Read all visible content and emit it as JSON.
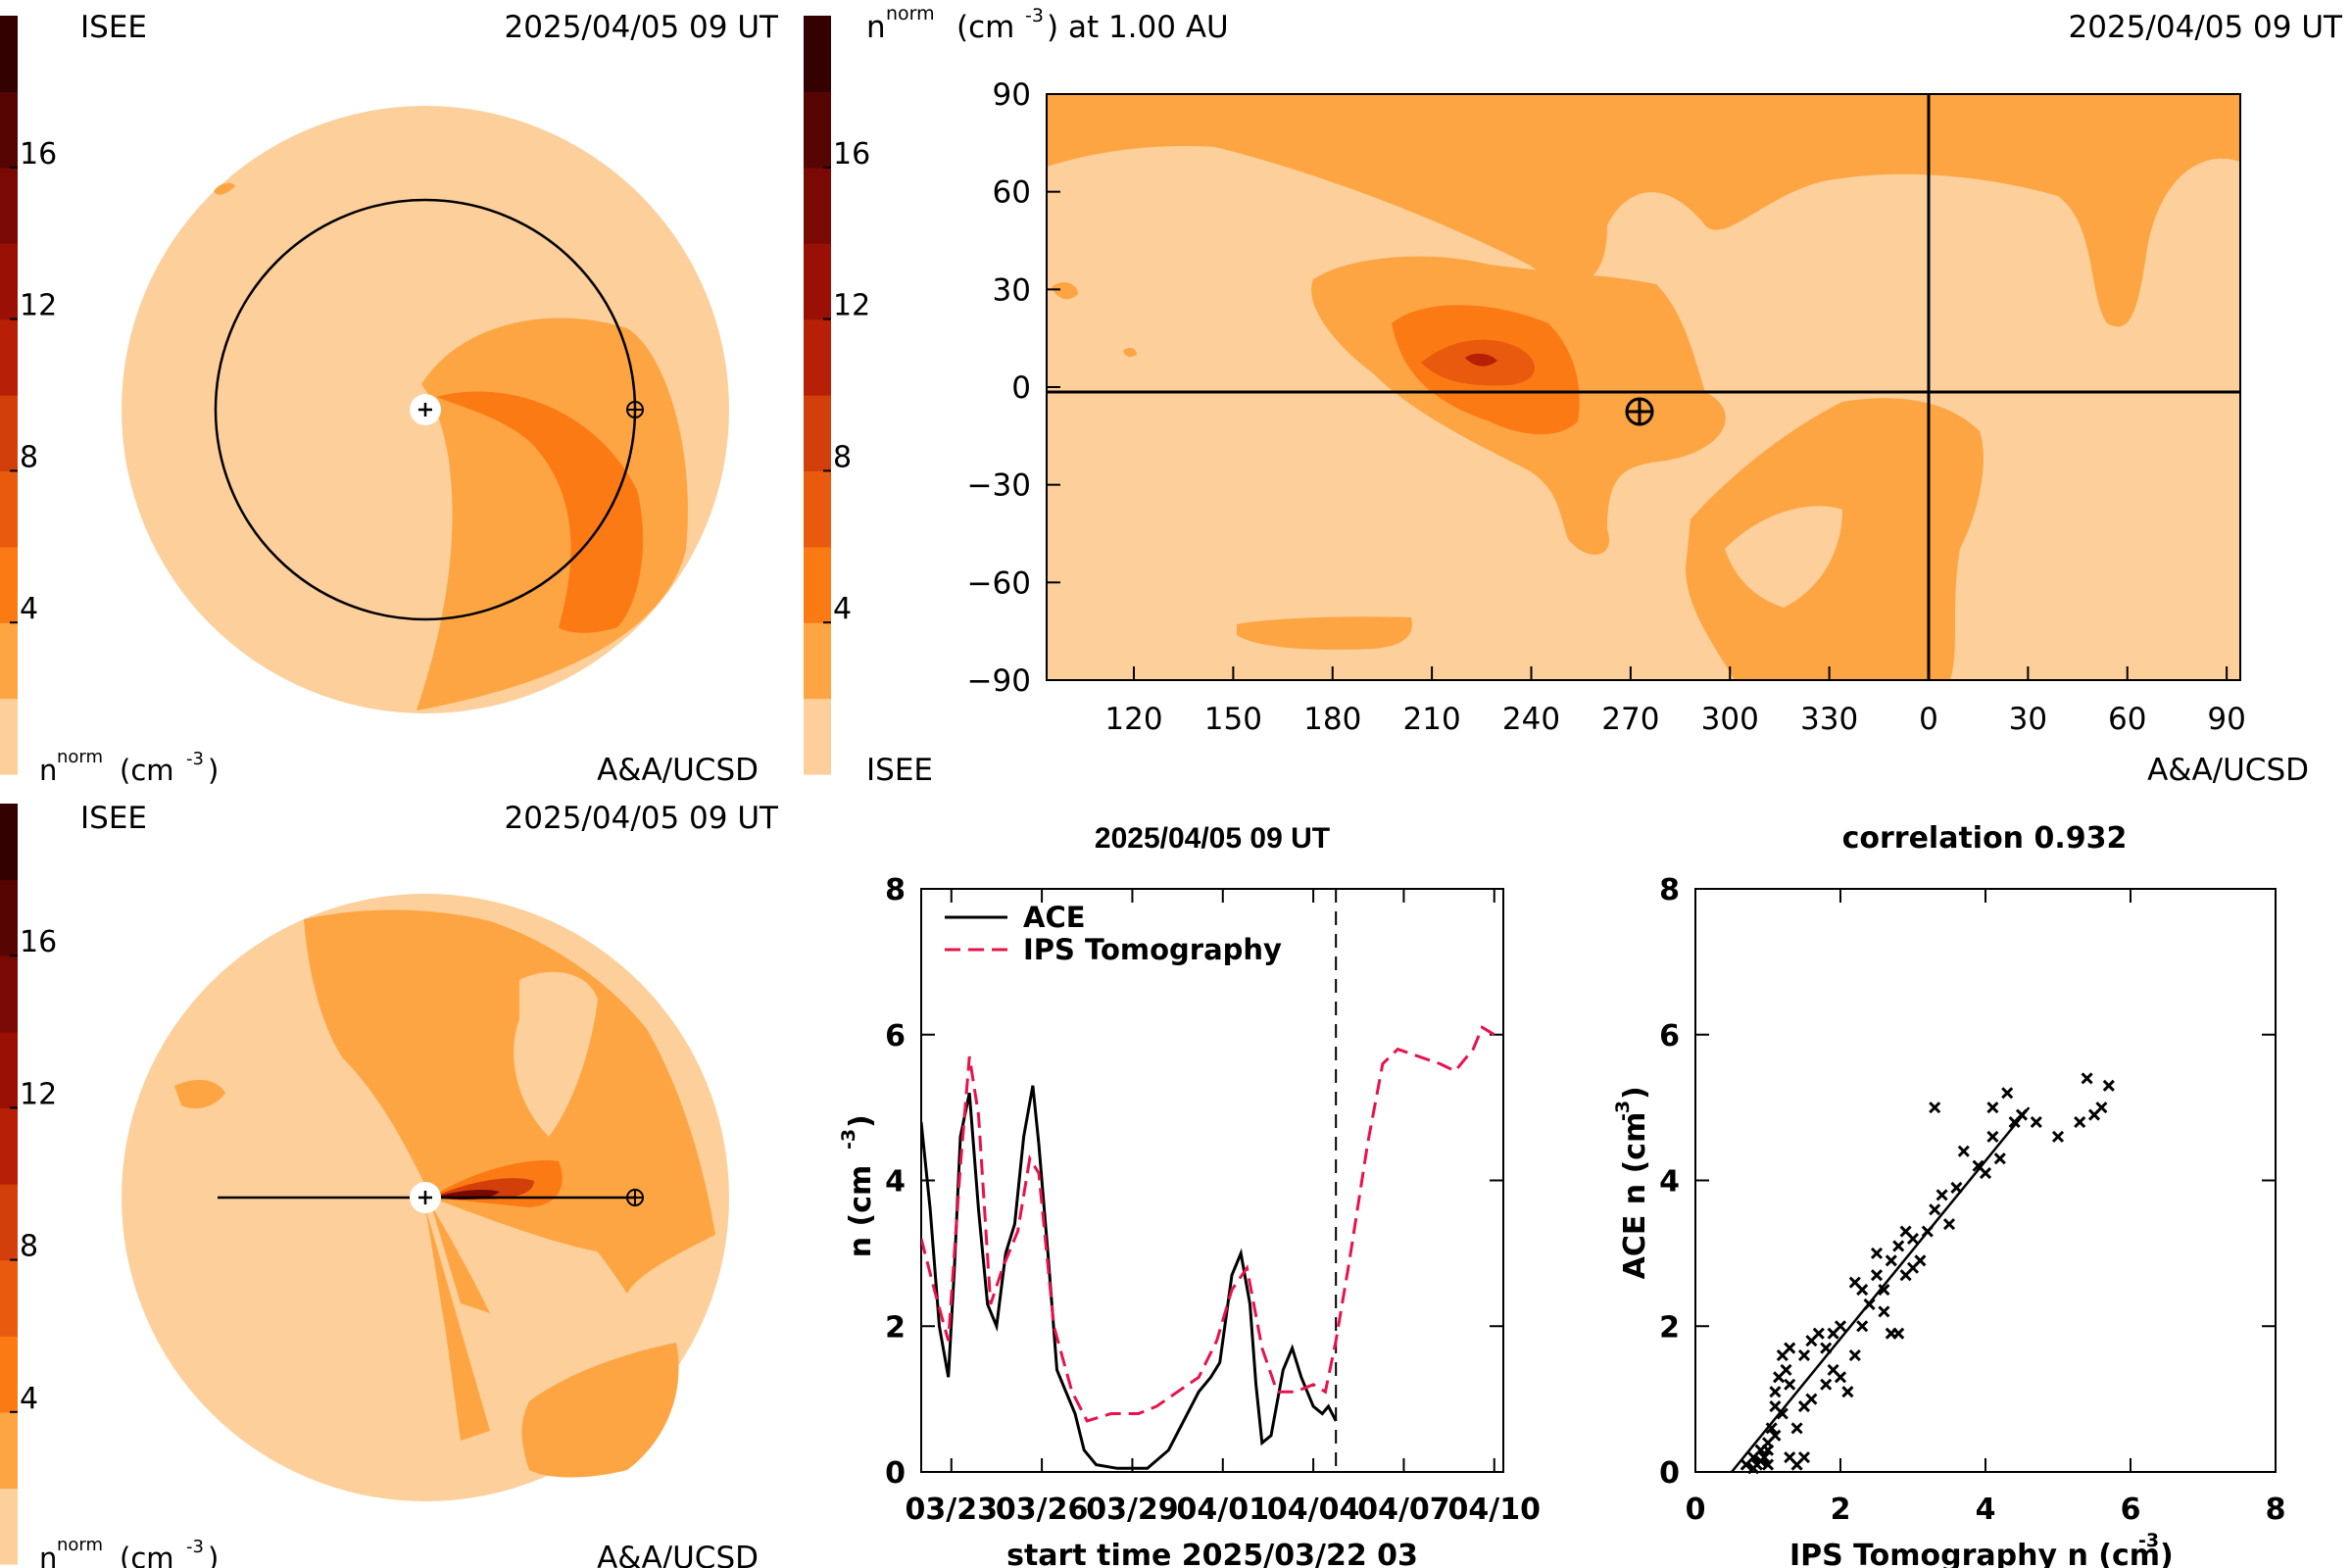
{
  "panels": {
    "equatorial_view": {
      "label_left": "ISEE",
      "timestamp": "2025/04/05 09 UT",
      "colorbar_ticks": [
        "16",
        "12",
        "8",
        "4"
      ],
      "colorbar_title_main": "n",
      "colorbar_title_sup": "norm",
      "colorbar_title_units": "(cm",
      "colorbar_title_unit_sup": "-3",
      "colorbar_title_close": ")",
      "credit": "A&A/UCSD"
    },
    "meridional_view": {
      "label_left": "ISEE",
      "timestamp": "2025/04/05 09 UT",
      "colorbar_ticks": [
        "16",
        "12",
        "8",
        "4"
      ],
      "colorbar_title_main": "n",
      "colorbar_title_sup": "norm",
      "colorbar_title_units": "(cm",
      "colorbar_title_unit_sup": "-3",
      "colorbar_title_close": ")",
      "credit": "A&A/UCSD"
    },
    "synoptic_map": {
      "title_main": "n",
      "title_sup": "norm",
      "title_units": "(cm",
      "title_unit_sup": "-3",
      "title_rest": ") at 1.00 AU",
      "timestamp": "2025/04/05 09 UT",
      "colorbar_ticks": [
        "16",
        "12",
        "8",
        "4"
      ],
      "label_bottom_left": "ISEE",
      "credit": "A&A/UCSD"
    },
    "timeseries": {
      "title": "2025/04/05 09 UT",
      "xlabel": "start time 2025/03/22 03",
      "ylabel_main": "n (cm",
      "ylabel_sup": "-3",
      "ylabel_close": ")"
    },
    "scatter": {
      "title": "correlation 0.932",
      "xlabel_main": "IPS Tomography n (cm",
      "xlabel_sup": "-3",
      "xlabel_close": ")",
      "ylabel_main": "ACE n (cm",
      "ylabel_sup": "-3",
      "ylabel_close": ")"
    }
  },
  "colors": {
    "levels": [
      "#fdcf9b",
      "#fda543",
      "#fb7a14",
      "#e95a0e",
      "#d33f0b",
      "#b71f06",
      "#9a1004",
      "#7a0903",
      "#570502",
      "#320100"
    ],
    "ace_line": "#000000",
    "ips_line": "#e8134a"
  },
  "chart_data": [
    {
      "type": "line",
      "title": "2025/04/05 09 UT",
      "xlabel": "start time 2025/03/22 03",
      "ylabel": "n (cm-3)",
      "x_tick_labels": [
        "03/23",
        "03/26",
        "03/29",
        "04/01",
        "04/04",
        "04/07",
        "04/10"
      ],
      "x_tick_days": [
        1,
        4,
        7,
        10,
        13,
        16,
        19
      ],
      "x_range_days": [
        0,
        19.3
      ],
      "ylim": [
        0,
        8
      ],
      "y_ticks": [
        0,
        2,
        4,
        6,
        8
      ],
      "current_time_day": 13.75,
      "legend_position": "top-left",
      "series": [
        {
          "name": "ACE",
          "style": "solid",
          "points": [
            [
              0.0,
              4.8
            ],
            [
              0.3,
              3.6
            ],
            [
              0.6,
              2.0
            ],
            [
              0.9,
              1.3
            ],
            [
              1.1,
              2.8
            ],
            [
              1.3,
              4.6
            ],
            [
              1.6,
              5.2
            ],
            [
              1.9,
              3.6
            ],
            [
              2.2,
              2.3
            ],
            [
              2.5,
              2.0
            ],
            [
              2.8,
              3.0
            ],
            [
              3.1,
              3.4
            ],
            [
              3.4,
              4.6
            ],
            [
              3.7,
              5.3
            ],
            [
              3.9,
              4.5
            ],
            [
              4.2,
              3.0
            ],
            [
              4.5,
              1.4
            ],
            [
              4.8,
              1.1
            ],
            [
              5.1,
              0.8
            ],
            [
              5.4,
              0.3
            ],
            [
              5.8,
              0.1
            ],
            [
              6.5,
              0.05
            ],
            [
              7.5,
              0.05
            ],
            [
              8.2,
              0.3
            ],
            [
              8.7,
              0.7
            ],
            [
              9.2,
              1.1
            ],
            [
              9.6,
              1.3
            ],
            [
              9.9,
              1.5
            ],
            [
              10.3,
              2.7
            ],
            [
              10.6,
              3.0
            ],
            [
              10.9,
              2.3
            ],
            [
              11.1,
              1.2
            ],
            [
              11.3,
              0.4
            ],
            [
              11.6,
              0.5
            ],
            [
              12.0,
              1.4
            ],
            [
              12.3,
              1.7
            ],
            [
              12.6,
              1.3
            ],
            [
              13.0,
              0.9
            ],
            [
              13.3,
              0.8
            ],
            [
              13.5,
              0.9
            ],
            [
              13.75,
              0.7
            ]
          ]
        },
        {
          "name": "IPS Tomography",
          "style": "dashed",
          "points": [
            [
              0.0,
              3.2
            ],
            [
              0.5,
              2.4
            ],
            [
              0.9,
              1.8
            ],
            [
              1.3,
              4.2
            ],
            [
              1.6,
              5.7
            ],
            [
              1.9,
              4.9
            ],
            [
              2.3,
              2.3
            ],
            [
              2.7,
              2.8
            ],
            [
              3.2,
              3.3
            ],
            [
              3.6,
              4.3
            ],
            [
              3.9,
              4.1
            ],
            [
              4.4,
              2.0
            ],
            [
              5.0,
              1.1
            ],
            [
              5.5,
              0.7
            ],
            [
              6.3,
              0.8
            ],
            [
              7.2,
              0.8
            ],
            [
              7.8,
              0.9
            ],
            [
              8.5,
              1.1
            ],
            [
              9.2,
              1.3
            ],
            [
              9.8,
              1.8
            ],
            [
              10.3,
              2.5
            ],
            [
              10.8,
              2.8
            ],
            [
              11.3,
              1.7
            ],
            [
              11.8,
              1.1
            ],
            [
              12.4,
              1.1
            ],
            [
              13.0,
              1.2
            ],
            [
              13.4,
              1.1
            ],
            [
              13.75,
              1.8
            ],
            [
              14.2,
              2.9
            ],
            [
              14.8,
              4.5
            ],
            [
              15.3,
              5.6
            ],
            [
              15.8,
              5.8
            ],
            [
              16.5,
              5.7
            ],
            [
              17.2,
              5.6
            ],
            [
              17.7,
              5.5
            ],
            [
              18.3,
              5.8
            ],
            [
              18.6,
              6.1
            ],
            [
              19.0,
              6.0
            ]
          ]
        }
      ]
    },
    {
      "type": "scatter",
      "title": "correlation 0.932",
      "xlabel": "IPS Tomography n (cm-3)",
      "ylabel": "ACE n (cm-3)",
      "xlim": [
        0,
        8
      ],
      "ylim": [
        0,
        8
      ],
      "x_ticks": [
        0,
        2,
        4,
        6,
        8
      ],
      "y_ticks": [
        0,
        2,
        4,
        6,
        8
      ],
      "fit_line": [
        [
          0.5,
          0.0
        ],
        [
          4.6,
          5.0
        ]
      ],
      "points": [
        [
          0.7,
          0.1
        ],
        [
          0.8,
          0.2
        ],
        [
          0.85,
          0.1
        ],
        [
          0.9,
          0.3
        ],
        [
          0.95,
          0.2
        ],
        [
          1.0,
          0.1
        ],
        [
          1.0,
          0.4
        ],
        [
          0.9,
          0.15
        ],
        [
          1.05,
          0.6
        ],
        [
          1.1,
          0.9
        ],
        [
          1.15,
          1.3
        ],
        [
          1.2,
          1.6
        ],
        [
          1.1,
          1.1
        ],
        [
          1.25,
          1.4
        ],
        [
          1.3,
          1.2
        ],
        [
          1.2,
          0.8
        ],
        [
          1.3,
          0.2
        ],
        [
          1.4,
          0.1
        ],
        [
          1.5,
          0.2
        ],
        [
          1.4,
          0.6
        ],
        [
          1.5,
          0.9
        ],
        [
          1.6,
          1.8
        ],
        [
          1.5,
          1.6
        ],
        [
          1.7,
          1.9
        ],
        [
          1.8,
          1.7
        ],
        [
          1.9,
          1.4
        ],
        [
          2.0,
          1.3
        ],
        [
          1.9,
          1.9
        ],
        [
          2.1,
          1.1
        ],
        [
          2.2,
          1.6
        ],
        [
          2.3,
          2.0
        ],
        [
          2.4,
          2.3
        ],
        [
          2.3,
          2.5
        ],
        [
          2.5,
          2.7
        ],
        [
          2.6,
          2.5
        ],
        [
          2.6,
          2.2
        ],
        [
          2.7,
          2.9
        ],
        [
          2.8,
          3.1
        ],
        [
          2.9,
          2.7
        ],
        [
          2.7,
          1.9
        ],
        [
          2.8,
          1.9
        ],
        [
          3.0,
          2.8
        ],
        [
          3.0,
          3.2
        ],
        [
          3.1,
          2.9
        ],
        [
          3.2,
          3.3
        ],
        [
          3.3,
          3.6
        ],
        [
          3.3,
          5.0
        ],
        [
          3.5,
          3.4
        ],
        [
          3.6,
          3.9
        ],
        [
          3.7,
          4.4
        ],
        [
          3.9,
          4.2
        ],
        [
          4.0,
          4.1
        ],
        [
          4.2,
          4.3
        ],
        [
          4.1,
          4.6
        ],
        [
          4.3,
          5.2
        ],
        [
          4.1,
          5.0
        ],
        [
          4.4,
          4.8
        ],
        [
          4.5,
          4.9
        ],
        [
          4.7,
          4.8
        ],
        [
          5.0,
          4.6
        ],
        [
          5.3,
          4.8
        ],
        [
          5.5,
          4.9
        ],
        [
          5.6,
          5.0
        ],
        [
          5.7,
          5.3
        ],
        [
          5.4,
          5.4
        ],
        [
          2.2,
          2.6
        ],
        [
          2.0,
          2.0
        ],
        [
          1.8,
          1.2
        ],
        [
          1.6,
          1.0
        ],
        [
          1.3,
          1.7
        ],
        [
          2.5,
          3.0
        ],
        [
          3.4,
          3.8
        ],
        [
          1.0,
          0.3
        ],
        [
          0.8,
          0.05
        ],
        [
          1.1,
          0.5
        ],
        [
          2.9,
          3.3
        ]
      ]
    }
  ]
}
